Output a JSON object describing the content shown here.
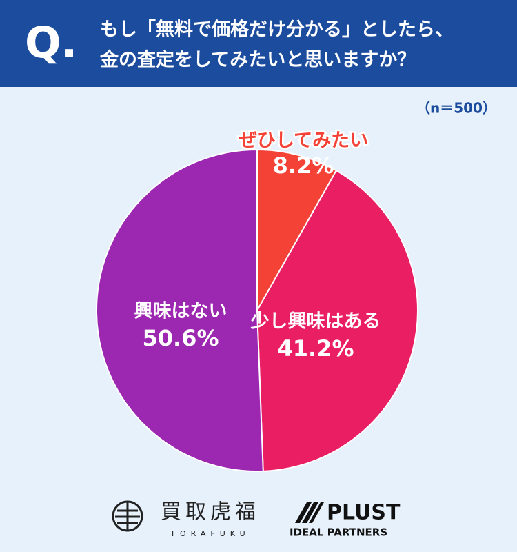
{
  "header": {
    "q_mark": "Q."
  },
  "chart_data": {
    "type": "pie",
    "title_lines": [
      "もし「無料で価格だけ分かる」としたら、",
      "金の査定をしてみたいと思いますか？"
    ],
    "subtitle": "（n＝500）",
    "categories": [
      "ぜひしてみたい",
      "少し興味はある",
      "興味はない"
    ],
    "values": [
      8.2,
      41.2,
      50.6
    ],
    "value_labels": [
      "8.2%",
      "41.2%",
      "50.6%"
    ],
    "colors": [
      "#f44336",
      "#e91e63",
      "#9c27b0"
    ]
  },
  "logos": {
    "torafuku": "買取虎福",
    "torafuku_sub": "TORAFUKU",
    "plust": "PLUST",
    "plust_sub": "IDEAL PARTNERS"
  }
}
